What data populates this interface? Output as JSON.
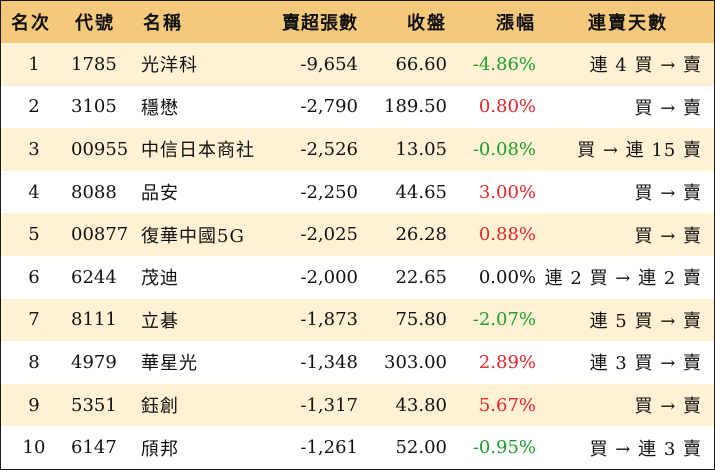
{
  "table": {
    "headers": {
      "rank": "名次",
      "code": "代號",
      "name": "名稱",
      "net_sell": "賣超張數",
      "close": "收盤",
      "change": "漲幅",
      "streak": "連賣天數"
    },
    "rows": [
      {
        "rank": "1",
        "code": "1785",
        "name": "光洋科",
        "net_sell": "-9,654",
        "close": "66.60",
        "change": "-4.86%",
        "streak": "連 4 買 → 賣"
      },
      {
        "rank": "2",
        "code": "3105",
        "name": "穩懋",
        "net_sell": "-2,790",
        "close": "189.50",
        "change": "0.80%",
        "streak": "買 → 賣"
      },
      {
        "rank": "3",
        "code": "00955",
        "name": "中信日本商社",
        "net_sell": "-2,526",
        "close": "13.05",
        "change": "-0.08%",
        "streak": "買 → 連 15 賣"
      },
      {
        "rank": "4",
        "code": "8088",
        "name": "品安",
        "net_sell": "-2,250",
        "close": "44.65",
        "change": "3.00%",
        "streak": "買 → 賣"
      },
      {
        "rank": "5",
        "code": "00877",
        "name": "復華中國5G",
        "net_sell": "-2,025",
        "close": "26.28",
        "change": "0.88%",
        "streak": "買 → 賣"
      },
      {
        "rank": "6",
        "code": "6244",
        "name": "茂迪",
        "net_sell": "-2,000",
        "close": "22.65",
        "change": "0.00%",
        "streak": "連 2 買 → 連 2 賣"
      },
      {
        "rank": "7",
        "code": "8111",
        "name": "立碁",
        "net_sell": "-1,873",
        "close": "75.80",
        "change": "-2.07%",
        "streak": "連 5 買 → 賣"
      },
      {
        "rank": "8",
        "code": "4979",
        "name": "華星光",
        "net_sell": "-1,348",
        "close": "303.00",
        "change": "2.89%",
        "streak": "連 3 買 → 賣"
      },
      {
        "rank": "9",
        "code": "5351",
        "name": "鈺創",
        "net_sell": "-1,317",
        "close": "43.80",
        "change": "5.67%",
        "streak": "買 → 賣"
      },
      {
        "rank": "10",
        "code": "6147",
        "name": "頎邦",
        "net_sell": "-1,261",
        "close": "52.00",
        "change": "-0.95%",
        "streak": "買 → 連 3 賣"
      }
    ]
  },
  "colors": {
    "header_bg": "#f4c97c",
    "row_alt_bg": "#fff1d3",
    "up": "#e3262c",
    "down": "#1e9e2e",
    "flat": "#111111"
  }
}
